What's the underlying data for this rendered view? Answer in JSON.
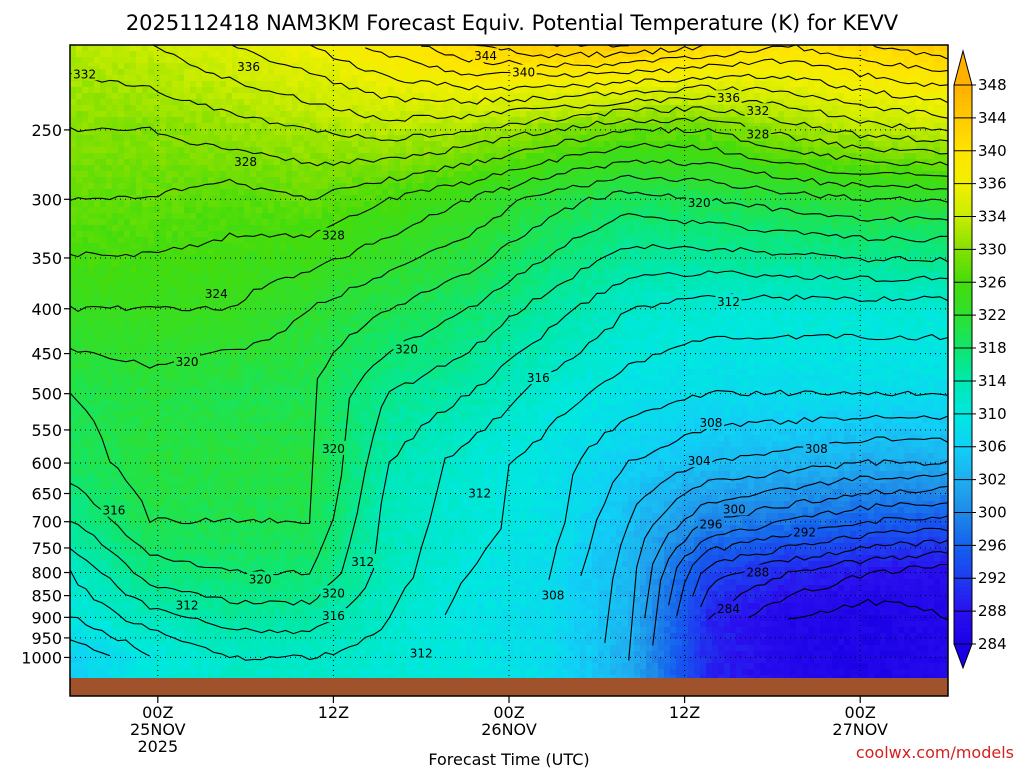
{
  "chart_data": {
    "type": "heatmap",
    "title": "2025112418 NAM3KM Forecast Equiv. Potential Temperature (K) for KEVV",
    "xlabel": "Forecast Time (UTC)",
    "ylabel": "",
    "y_scale": "log",
    "y_ticks": [
      250,
      300,
      350,
      400,
      450,
      500,
      550,
      600,
      650,
      700,
      750,
      800,
      850,
      900,
      950,
      1000
    ],
    "y_tick_labels": [
      "250",
      "300",
      "350",
      "400",
      "450",
      "500",
      "550",
      "600",
      "650",
      "700",
      "750",
      "800",
      "850",
      "900",
      "950",
      "1000"
    ],
    "ylim": [
      200,
      1050
    ],
    "xlim": [
      -3,
      27
    ],
    "x_tick_labels": [
      {
        "hour": 0,
        "lines": [
          "00Z",
          "25NOV",
          "2025"
        ]
      },
      {
        "hour": 6,
        "lines": [
          "12Z"
        ]
      },
      {
        "hour": 12,
        "lines": [
          "00Z",
          "26NOV"
        ]
      },
      {
        "hour": 18,
        "lines": [
          "12Z"
        ]
      },
      {
        "hour": 24,
        "lines": [
          "00Z",
          "27NOV"
        ]
      }
    ],
    "grid": true,
    "colorbar": {
      "min": 282,
      "max": 350,
      "tick_values": [
        284,
        288,
        292,
        296,
        300,
        302,
        306,
        310,
        314,
        318,
        322,
        326,
        330,
        334,
        336,
        340,
        344,
        348
      ],
      "tick_labels": [
        "284",
        "288",
        "292",
        "296",
        "300",
        "302",
        "306",
        "310",
        "314",
        "318",
        "322",
        "326",
        "330",
        "334",
        "336",
        "340",
        "344",
        "348"
      ]
    },
    "fields_sample": [
      {
        "pressure": 200,
        "theta_e": [
          333,
          334,
          336,
          338,
          341,
          344,
          346,
          346,
          344,
          342,
          344,
          346
        ]
      },
      {
        "pressure": 250,
        "theta_e": [
          330,
          330,
          331,
          332,
          333,
          332,
          330,
          328,
          328,
          331,
          333,
          334
        ]
      },
      {
        "pressure": 300,
        "theta_e": [
          328,
          328,
          327,
          328,
          326,
          324,
          321,
          319,
          320,
          321,
          322,
          322
        ]
      },
      {
        "pressure": 400,
        "theta_e": [
          324,
          324,
          324,
          322,
          320,
          318,
          315,
          312,
          311,
          311,
          311,
          311
        ]
      },
      {
        "pressure": 500,
        "theta_e": [
          320,
          321,
          320,
          320,
          316,
          314,
          311,
          309,
          308,
          308,
          308,
          308
        ]
      },
      {
        "pressure": 600,
        "theta_e": [
          319,
          321,
          321,
          321,
          314,
          311,
          309,
          306,
          304,
          303,
          302,
          302
        ]
      },
      {
        "pressure": 700,
        "theta_e": [
          316,
          320,
          320,
          320,
          313,
          311,
          309,
          304,
          298,
          296,
          294,
          293
        ]
      },
      {
        "pressure": 800,
        "theta_e": [
          312,
          317,
          318,
          318,
          313,
          310,
          308,
          303,
          291,
          288,
          286,
          285
        ]
      },
      {
        "pressure": 900,
        "theta_e": [
          310,
          313,
          315,
          315,
          312,
          309,
          308,
          303,
          288,
          284,
          283,
          284
        ]
      },
      {
        "pressure": 1000,
        "theta_e": [
          306,
          310,
          312,
          312,
          311,
          310,
          308,
          302,
          288,
          284,
          283,
          284
        ]
      }
    ],
    "contour_labels": [
      {
        "text": "344",
        "hour": 11.2,
        "pressure": 206
      },
      {
        "text": "340",
        "hour": 12.5,
        "pressure": 215
      },
      {
        "text": "336",
        "hour": 19.5,
        "pressure": 230
      },
      {
        "text": "332",
        "hour": 20.5,
        "pressure": 238
      },
      {
        "text": "328",
        "hour": 20.5,
        "pressure": 253
      },
      {
        "text": "320",
        "hour": 18.5,
        "pressure": 303
      },
      {
        "text": "312",
        "hour": 19.5,
        "pressure": 393
      },
      {
        "text": "308",
        "hour": 18.9,
        "pressure": 540
      },
      {
        "text": "308",
        "hour": 22.5,
        "pressure": 578
      },
      {
        "text": "304",
        "hour": 18.5,
        "pressure": 597
      },
      {
        "text": "300",
        "hour": 19.7,
        "pressure": 678
      },
      {
        "text": "296",
        "hour": 18.9,
        "pressure": 705
      },
      {
        "text": "292",
        "hour": 22.1,
        "pressure": 720
      },
      {
        "text": "288",
        "hour": 20.5,
        "pressure": 800
      },
      {
        "text": "284",
        "hour": 19.5,
        "pressure": 880
      },
      {
        "text": "332",
        "hour": -2.5,
        "pressure": 216
      },
      {
        "text": "336",
        "hour": 3.1,
        "pressure": 212
      },
      {
        "text": "328",
        "hour": 3.0,
        "pressure": 272
      },
      {
        "text": "328",
        "hour": 6.0,
        "pressure": 330
      },
      {
        "text": "324",
        "hour": 2.0,
        "pressure": 385
      },
      {
        "text": "320",
        "hour": 1.0,
        "pressure": 460
      },
      {
        "text": "320",
        "hour": 8.5,
        "pressure": 445
      },
      {
        "text": "316",
        "hour": 13.0,
        "pressure": 480
      },
      {
        "text": "320",
        "hour": 6.0,
        "pressure": 578
      },
      {
        "text": "312",
        "hour": 11.0,
        "pressure": 650
      },
      {
        "text": "316",
        "hour": -1.5,
        "pressure": 680
      },
      {
        "text": "312",
        "hour": 7.0,
        "pressure": 778
      },
      {
        "text": "320",
        "hour": 3.5,
        "pressure": 815
      },
      {
        "text": "320",
        "hour": 6.0,
        "pressure": 845
      },
      {
        "text": "312",
        "hour": 1.0,
        "pressure": 872
      },
      {
        "text": "316",
        "hour": 6.0,
        "pressure": 897
      },
      {
        "text": "308",
        "hour": 13.5,
        "pressure": 850
      },
      {
        "text": "312",
        "hour": 9.0,
        "pressure": 990
      }
    ]
  },
  "colors": {
    "ground": "#a0522d",
    "palette": [
      {
        "v": 282,
        "c": "#1a00e6"
      },
      {
        "v": 286,
        "c": "#2a10ee"
      },
      {
        "v": 290,
        "c": "#1e3cf0"
      },
      {
        "v": 294,
        "c": "#1460ee"
      },
      {
        "v": 298,
        "c": "#1e8ae8"
      },
      {
        "v": 302,
        "c": "#1eaef0"
      },
      {
        "v": 306,
        "c": "#10d0f6"
      },
      {
        "v": 310,
        "c": "#00e8e0"
      },
      {
        "v": 314,
        "c": "#00e8b0"
      },
      {
        "v": 318,
        "c": "#10e66e"
      },
      {
        "v": 322,
        "c": "#2ee030"
      },
      {
        "v": 326,
        "c": "#44dc0c"
      },
      {
        "v": 330,
        "c": "#84e000"
      },
      {
        "v": 334,
        "c": "#c8ec00"
      },
      {
        "v": 338,
        "c": "#f0f000"
      },
      {
        "v": 342,
        "c": "#ffe400"
      },
      {
        "v": 346,
        "c": "#ffca00"
      },
      {
        "v": 350,
        "c": "#ffb000"
      }
    ]
  },
  "credit": "coolwx.com/models"
}
